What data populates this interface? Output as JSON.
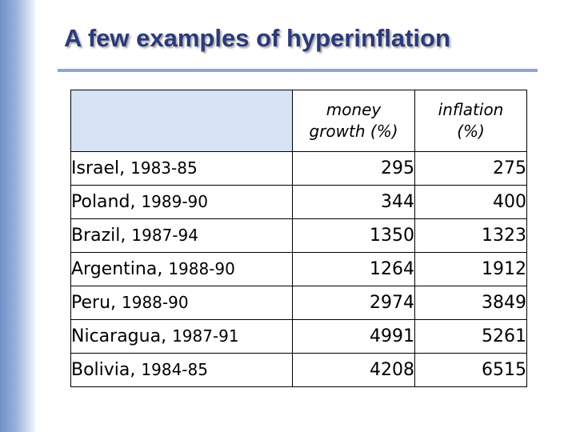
{
  "slide": {
    "title": "A few examples of hyperinflation"
  },
  "table": {
    "headers": {
      "money_growth": [
        "money",
        "growth (%)"
      ],
      "inflation": [
        "inflation",
        "(%)"
      ]
    },
    "rows": [
      {
        "country": "Israel,",
        "years": "1983-85",
        "money_growth": "295",
        "inflation": "275"
      },
      {
        "country": "Poland,",
        "years": "1989-90",
        "money_growth": "344",
        "inflation": "400"
      },
      {
        "country": "Brazil,",
        "years": "1987-94",
        "money_growth": "1350",
        "inflation": "1323"
      },
      {
        "country": "Argentina,",
        "years": "1988-90",
        "money_growth": "1264",
        "inflation": "1912"
      },
      {
        "country": "Peru,",
        "years": "1988-90",
        "money_growth": "2974",
        "inflation": "3849"
      },
      {
        "country": "Nicaragua,",
        "years": "1987-91",
        "money_growth": "4991",
        "inflation": "5261"
      },
      {
        "country": "Bolivia,",
        "years": "1984-85",
        "money_growth": "4208",
        "inflation": "6515"
      }
    ]
  },
  "colors": {
    "title": "#2b3a7a",
    "header_blank_cell": "#d5e3f4",
    "side_bar": "#6f8fc8"
  }
}
